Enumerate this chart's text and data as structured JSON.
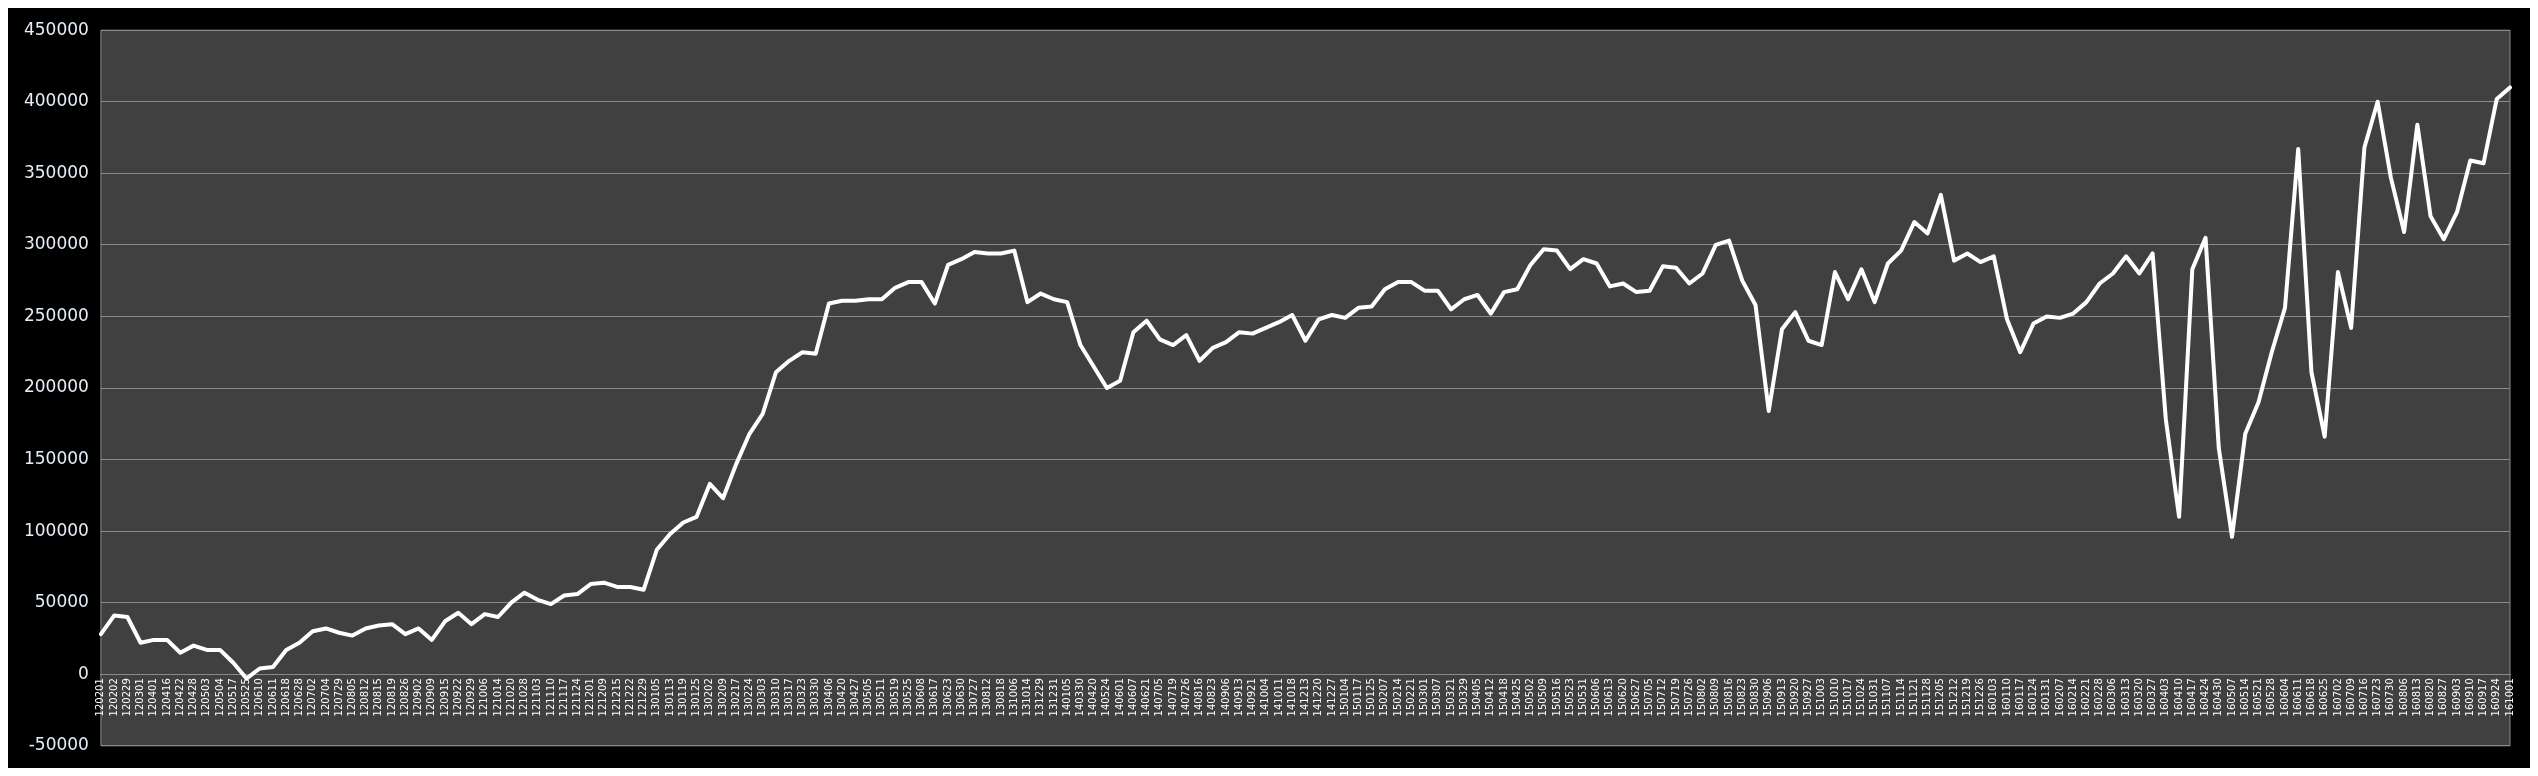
{
  "chart_data": {
    "type": "line",
    "categories": [
      "120201",
      "120202",
      "120229",
      "120301",
      "120401",
      "120416",
      "120422",
      "120428",
      "120503",
      "120504",
      "120517",
      "120525",
      "120610",
      "120611",
      "120618",
      "120628",
      "120702",
      "120704",
      "120729",
      "120805",
      "120812",
      "120815",
      "120819",
      "120826",
      "120902",
      "120909",
      "120915",
      "120922",
      "120929",
      "121006",
      "121014",
      "121020",
      "121028",
      "121103",
      "121110",
      "121117",
      "121124",
      "121201",
      "121209",
      "121215",
      "121222",
      "121229",
      "130105",
      "130113",
      "130119",
      "130125",
      "130202",
      "130209",
      "130217",
      "130224",
      "130303",
      "130310",
      "130317",
      "130323",
      "130330",
      "130406",
      "130420",
      "130427",
      "130505",
      "130511",
      "130519",
      "130525",
      "130608",
      "130617",
      "130623",
      "130630",
      "130727",
      "130812",
      "130818",
      "131006",
      "131014",
      "131229",
      "131231",
      "140105",
      "140330",
      "140420",
      "140524",
      "140601",
      "140607",
      "140621",
      "140705",
      "140719",
      "140726",
      "140816",
      "140823",
      "140906",
      "140913",
      "140921",
      "141004",
      "141011",
      "141018",
      "141213",
      "141220",
      "141227",
      "150104",
      "150117",
      "150125",
      "150207",
      "150214",
      "150221",
      "150301",
      "150307",
      "150321",
      "150329",
      "150405",
      "150412",
      "150418",
      "150425",
      "150502",
      "150509",
      "150516",
      "150523",
      "150531",
      "150606",
      "150613",
      "150620",
      "150627",
      "150705",
      "150712",
      "150719",
      "150726",
      "150802",
      "150809",
      "150816",
      "150823",
      "150830",
      "150906",
      "150913",
      "150920",
      "150927",
      "151003",
      "151010",
      "151017",
      "151024",
      "151031",
      "151107",
      "151114",
      "151121",
      "151128",
      "151205",
      "151212",
      "151219",
      "151226",
      "160103",
      "160110",
      "160117",
      "160124",
      "160131",
      "160207",
      "160214",
      "160221",
      "160228",
      "160306",
      "160313",
      "160320",
      "160327",
      "160403",
      "160410",
      "160417",
      "160424",
      "160430",
      "160507",
      "160514",
      "160521",
      "160528",
      "160604",
      "160611",
      "160618",
      "160625",
      "160702",
      "160709",
      "160716",
      "160723",
      "160730",
      "160806",
      "160813",
      "160820",
      "160827",
      "160903",
      "160910",
      "160917",
      "160924",
      "161001"
    ],
    "series": [
      {
        "color": "#ffffff",
        "values": [
          28000,
          41000,
          40000,
          22000,
          24000,
          24000,
          15000,
          20000,
          17000,
          17000,
          8000,
          -3000,
          4000,
          5000,
          17000,
          22000,
          30000,
          32000,
          29000,
          27000,
          32000,
          34000,
          35000,
          28000,
          32000,
          24000,
          37000,
          43000,
          35000,
          42000,
          40000,
          50000,
          57000,
          52000,
          49000,
          55000,
          56000,
          63000,
          64000,
          61000,
          61000,
          59000,
          87000,
          98000,
          106000,
          110000,
          133000,
          123000,
          147000,
          168000,
          182000,
          211000,
          219000,
          225000,
          224000,
          259000,
          261000,
          261000,
          262000,
          262000,
          270000,
          274000,
          274000,
          259000,
          286000,
          290000,
          295000,
          294000,
          294000,
          296000,
          260000,
          266000,
          262000,
          260000,
          230000,
          215000,
          200000,
          205000,
          239000,
          247000,
          234000,
          230000,
          237000,
          219000,
          228000,
          232000,
          239000,
          238000,
          242000,
          246000,
          251000,
          233000,
          248000,
          251000,
          249000,
          256000,
          257000,
          269000,
          274000,
          274000,
          268000,
          268000,
          255000,
          262000,
          265000,
          252000,
          267000,
          269000,
          286000,
          297000,
          296000,
          283000,
          290000,
          287000,
          271000,
          273000,
          267000,
          268000,
          285000,
          284000,
          273000,
          280000,
          300000,
          303000,
          275000,
          258000,
          184000,
          241000,
          253000,
          233000,
          230000,
          281000,
          262000,
          283000,
          260000,
          287000,
          296000,
          316000,
          308000,
          335000,
          289000,
          294000,
          288000,
          292000,
          248000,
          225000,
          245000,
          250000,
          249000,
          252000,
          260000,
          273000,
          280000,
          292000,
          280000,
          294000,
          178000,
          110000,
          283000,
          305000,
          158000,
          96000,
          168000,
          190000,
          225000,
          256000,
          367000,
          211000,
          166000,
          281000,
          242000,
          368000,
          400000,
          347000,
          309000,
          384000,
          320000,
          304000,
          323000,
          359000,
          357000,
          402000,
          410000
        ]
      }
    ],
    "ylim": [
      -50000,
      450000
    ],
    "yticks": [
      -50000,
      0,
      50000,
      100000,
      150000,
      200000,
      250000,
      300000,
      350000,
      400000,
      450000
    ],
    "grid": "y",
    "legend": false,
    "marker": "none",
    "line_style": "solid"
  }
}
